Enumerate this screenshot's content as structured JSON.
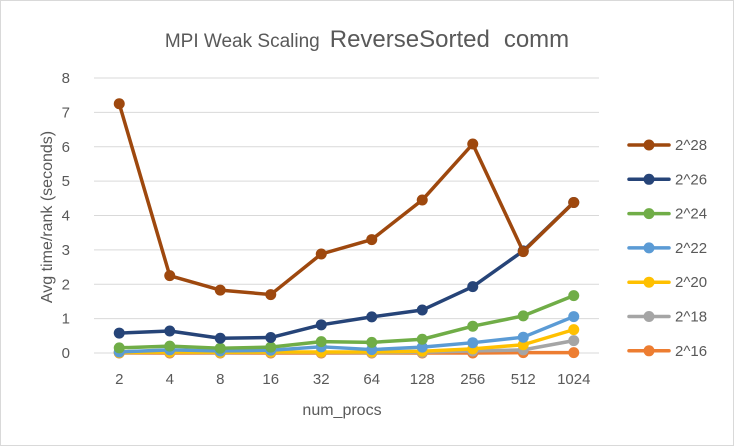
{
  "chart_data": {
    "type": "line",
    "title": "MPI Weak Scaling ReverseSorted  comm",
    "title_parts": [
      "MPI Weak Scaling",
      "ReverseSorted",
      "comm"
    ],
    "xlabel": "num_procs",
    "ylabel": "Avg time/rank (seconds)",
    "categories": [
      "2",
      "4",
      "8",
      "16",
      "32",
      "64",
      "128",
      "256",
      "512",
      "1024"
    ],
    "ylim": [
      0,
      8
    ],
    "yticks": [
      "0",
      "1",
      "2",
      "3",
      "4",
      "5",
      "6",
      "7",
      "8"
    ],
    "grid": "horizontal",
    "legend_position": "right",
    "series": [
      {
        "name": "2^28",
        "color": "#9e480e",
        "values": [
          7.25,
          2.25,
          1.83,
          1.7,
          2.88,
          3.3,
          4.45,
          6.08,
          2.95,
          4.38
        ]
      },
      {
        "name": "2^26",
        "color": "#264478",
        "values": [
          0.58,
          0.64,
          0.43,
          0.45,
          0.82,
          1.05,
          1.25,
          1.93,
          2.97,
          4.38
        ]
      },
      {
        "name": "2^24",
        "color": "#70ad47",
        "values": [
          0.15,
          0.2,
          0.14,
          0.17,
          0.33,
          0.31,
          0.4,
          0.78,
          1.08,
          1.67
        ]
      },
      {
        "name": "2^22",
        "color": "#5b9bd5",
        "values": [
          0.03,
          0.09,
          0.06,
          0.08,
          0.18,
          0.1,
          0.17,
          0.3,
          0.46,
          1.06
        ]
      },
      {
        "name": "2^20",
        "color": "#ffc000",
        "values": [
          0.01,
          0.03,
          0.02,
          0.03,
          0.03,
          0.03,
          0.05,
          0.12,
          0.24,
          0.68
        ]
      },
      {
        "name": "2^18",
        "color": "#a5a5a5",
        "values": [
          0.01,
          0.02,
          0.01,
          0.02,
          0.02,
          0.01,
          0.02,
          0.06,
          0.09,
          0.36
        ]
      },
      {
        "name": "2^16",
        "color": "#ed7d31",
        "values": [
          0.0,
          0.0,
          0.0,
          0.0,
          0.0,
          0.0,
          0.0,
          0.0,
          0.01,
          0.01
        ]
      }
    ]
  }
}
